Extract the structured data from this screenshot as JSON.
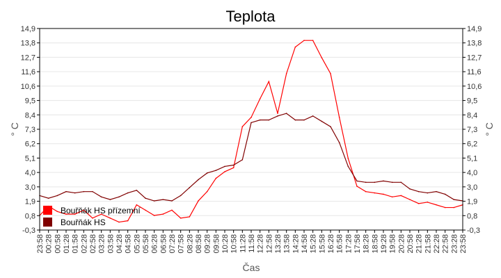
{
  "chart_data": {
    "type": "line",
    "title": "Teplota",
    "xlabel": "Čas",
    "ylabel": "° C",
    "ylabel_right": "° C",
    "ylim": [
      -0.3,
      14.9
    ],
    "y_ticks": [
      "-0,3",
      "0,8",
      "1,9",
      "3,0",
      "4,0",
      "5,1",
      "6,2",
      "7,3",
      "8,4",
      "9,5",
      "10,6",
      "11,6",
      "12,7",
      "13,8",
      "14,9"
    ],
    "x": [
      "23:58",
      "00:28",
      "00:58",
      "01:28",
      "01:58",
      "02:28",
      "02:58",
      "03:28",
      "03:58",
      "04:28",
      "04:58",
      "05:28",
      "05:58",
      "06:28",
      "06:58",
      "07:28",
      "07:58",
      "08:28",
      "08:58",
      "09:28",
      "09:58",
      "10:28",
      "10:58",
      "11:28",
      "11:58",
      "12:28",
      "12:58",
      "13:28",
      "13:58",
      "14:28",
      "14:58",
      "15:28",
      "15:58",
      "16:28",
      "16:58",
      "17:28",
      "17:58",
      "18:28",
      "18:58",
      "19:28",
      "19:58",
      "20:28",
      "20:58",
      "21:28",
      "21:58",
      "22:28",
      "22:58",
      "23:28",
      "23:58"
    ],
    "grid": true,
    "legend_position": "bottom-left",
    "series": [
      {
        "name": "Bouřňák HS přízemní",
        "color": "#ff0000",
        "values": [
          0.8,
          1.5,
          1.1,
          0.9,
          0.9,
          1.2,
          0.6,
          0.9,
          0.6,
          0.3,
          0.4,
          1.6,
          1.2,
          0.8,
          0.9,
          1.2,
          0.6,
          0.7,
          1.9,
          2.6,
          3.6,
          4.1,
          4.4,
          7.5,
          8.2,
          9.6,
          10.9,
          8.5,
          11.5,
          13.5,
          14.0,
          14.0,
          12.7,
          11.5,
          8.2,
          5.1,
          3.0,
          2.6,
          2.5,
          2.4,
          2.2,
          2.3,
          2.0,
          1.7,
          1.8,
          1.6,
          1.4,
          1.4,
          1.6
        ]
      },
      {
        "name": "Bouřňák HS",
        "color": "#800000",
        "values": [
          2.3,
          2.1,
          2.3,
          2.6,
          2.5,
          2.6,
          2.6,
          2.2,
          2.0,
          2.2,
          2.5,
          2.7,
          2.1,
          1.9,
          2.0,
          1.9,
          2.3,
          2.9,
          3.5,
          4.0,
          4.2,
          4.5,
          4.6,
          5.0,
          7.8,
          8.0,
          8.0,
          8.3,
          8.5,
          8.0,
          8.0,
          8.3,
          7.9,
          7.5,
          6.3,
          4.5,
          3.4,
          3.3,
          3.3,
          3.4,
          3.3,
          3.3,
          2.8,
          2.6,
          2.5,
          2.6,
          2.4,
          2.0,
          1.9
        ]
      }
    ]
  }
}
